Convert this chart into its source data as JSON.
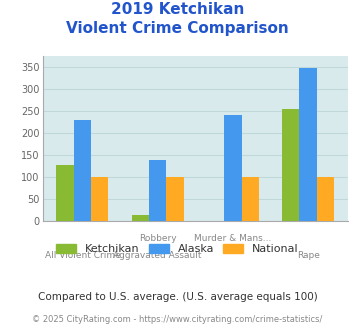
{
  "title_line1": "2019 Ketchikan",
  "title_line2": "Violent Crime Comparison",
  "title_color": "#2255cc",
  "series": {
    "Ketchikan": [
      128,
      15,
      0,
      255
    ],
    "Alaska": [
      230,
      140,
      242,
      348
    ],
    "National": [
      100,
      100,
      100,
      100
    ]
  },
  "colors": {
    "Ketchikan": "#88bb33",
    "Alaska": "#4499ee",
    "National": "#ffaa22"
  },
  "top_labels": [
    "",
    "Robbery",
    "Murder & Mans...",
    ""
  ],
  "bottom_labels": [
    "All Violent Crime",
    "Aggravated Assault",
    "",
    "Rape"
  ],
  "ylim": [
    0,
    375
  ],
  "yticks": [
    0,
    50,
    100,
    150,
    200,
    250,
    300,
    350
  ],
  "plot_bg": "#d8eaec",
  "grid_color": "#c0d8da",
  "footnote1": "Compared to U.S. average. (U.S. average equals 100)",
  "footnote2_pre": "© 2025 CityRating.com - ",
  "footnote2_url": "https://www.cityrating.com/crime-statistics/",
  "footnote1_color": "#333333",
  "footnote2_color": "#888888",
  "footnote2_url_color": "#3366cc",
  "bar_width": 0.23
}
